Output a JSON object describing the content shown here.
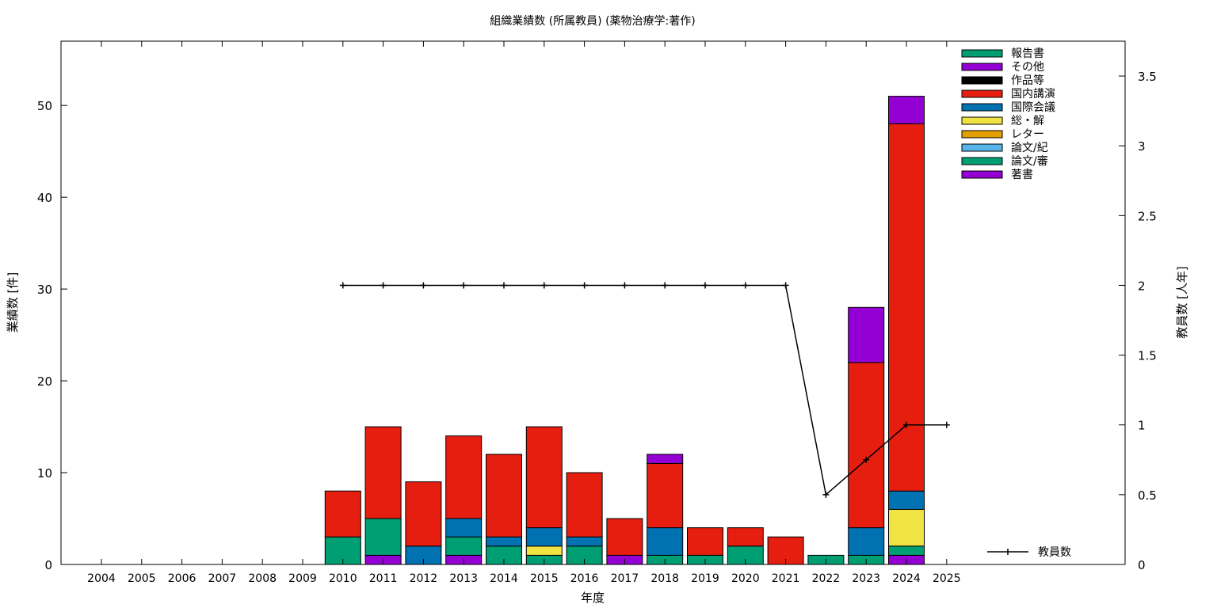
{
  "chart_data": {
    "type": "bar",
    "stacked": true,
    "title": "組織業績数 (所属教員) (薬物治療学:著作)",
    "xlabel": "年度",
    "ylabel": "業績数 [件]",
    "y2label": "教員数 [人年]",
    "categories": [
      "2004",
      "2005",
      "2006",
      "2007",
      "2008",
      "2009",
      "2010",
      "2011",
      "2012",
      "2013",
      "2014",
      "2015",
      "2016",
      "2017",
      "2018",
      "2019",
      "2020",
      "2021",
      "2022",
      "2023",
      "2024",
      "2025"
    ],
    "ylim": [
      0,
      57
    ],
    "yticks": [
      0,
      10,
      20,
      30,
      40,
      50
    ],
    "y2lim": [
      0,
      3.75
    ],
    "y2ticks": [
      "0",
      "0.5",
      "1",
      "1.5",
      "2",
      "2.5",
      "3",
      "3.5"
    ],
    "grid": false,
    "legend_position": "top-right",
    "series": [
      {
        "name": "著書",
        "color": "#9400d3",
        "values": [
          0,
          0,
          0,
          0,
          0,
          0,
          0,
          1,
          0,
          1,
          0,
          0,
          0,
          1,
          0,
          0,
          0,
          0,
          0,
          0,
          1,
          0
        ]
      },
      {
        "name": "論文/審",
        "color": "#009e73",
        "values": [
          0,
          0,
          0,
          0,
          0,
          0,
          3,
          4,
          0,
          2,
          2,
          1,
          2,
          0,
          1,
          1,
          2,
          0,
          1,
          1,
          1,
          0
        ]
      },
      {
        "name": "論文/紀",
        "color": "#56b4e9",
        "values": [
          0,
          0,
          0,
          0,
          0,
          0,
          0,
          0,
          0,
          0,
          0,
          0,
          0,
          0,
          0,
          0,
          0,
          0,
          0,
          0,
          0,
          0
        ]
      },
      {
        "name": "レター",
        "color": "#e69f00",
        "values": [
          0,
          0,
          0,
          0,
          0,
          0,
          0,
          0,
          0,
          0,
          0,
          0,
          0,
          0,
          0,
          0,
          0,
          0,
          0,
          0,
          0,
          0
        ]
      },
      {
        "name": "総・解",
        "color": "#f0e442",
        "values": [
          0,
          0,
          0,
          0,
          0,
          0,
          0,
          0,
          0,
          0,
          0,
          1,
          0,
          0,
          0,
          0,
          0,
          0,
          0,
          0,
          4,
          0
        ]
      },
      {
        "name": "国際会議",
        "color": "#0072b2",
        "values": [
          0,
          0,
          0,
          0,
          0,
          0,
          0,
          0,
          2,
          2,
          1,
          2,
          1,
          0,
          3,
          0,
          0,
          0,
          0,
          3,
          2,
          0
        ]
      },
      {
        "name": "国内講演",
        "color": "#e51e10",
        "values": [
          0,
          0,
          0,
          0,
          0,
          0,
          5,
          10,
          7,
          9,
          9,
          11,
          7,
          4,
          7,
          3,
          2,
          3,
          0,
          18,
          40,
          0
        ]
      },
      {
        "name": "作品等",
        "color": "#000000",
        "values": [
          0,
          0,
          0,
          0,
          0,
          0,
          0,
          0,
          0,
          0,
          0,
          0,
          0,
          0,
          0,
          0,
          0,
          0,
          0,
          0,
          0,
          0
        ]
      },
      {
        "name": "その他",
        "color": "#9400d3",
        "values": [
          0,
          0,
          0,
          0,
          0,
          0,
          0,
          0,
          0,
          0,
          0,
          0,
          0,
          0,
          1,
          0,
          0,
          0,
          0,
          6,
          3,
          0
        ]
      },
      {
        "name": "報告書",
        "color": "#009e73",
        "values": [
          0,
          0,
          0,
          0,
          0,
          0,
          0,
          0,
          0,
          0,
          0,
          0,
          0,
          0,
          0,
          0,
          0,
          0,
          0,
          0,
          0,
          0
        ]
      }
    ],
    "line_series": {
      "name": "教員数",
      "axis": "y2",
      "color": "#000000",
      "points": [
        {
          "x": "2010",
          "y": 2
        },
        {
          "x": "2011",
          "y": 2
        },
        {
          "x": "2012",
          "y": 2
        },
        {
          "x": "2013",
          "y": 2
        },
        {
          "x": "2014",
          "y": 2
        },
        {
          "x": "2015",
          "y": 2
        },
        {
          "x": "2016",
          "y": 2
        },
        {
          "x": "2017",
          "y": 2
        },
        {
          "x": "2018",
          "y": 2
        },
        {
          "x": "2019",
          "y": 2
        },
        {
          "x": "2020",
          "y": 2
        },
        {
          "x": "2021",
          "y": 2
        },
        {
          "x": "2022",
          "y": 0.5
        },
        {
          "x": "2023",
          "y": 0.75
        },
        {
          "x": "2024",
          "y": 1
        },
        {
          "x": "2025",
          "y": 1
        }
      ]
    },
    "legend_order": [
      "報告書",
      "その他",
      "作品等",
      "国内講演",
      "国際会議",
      "総・解",
      "レター",
      "論文/紀",
      "論文/審",
      "著書"
    ]
  }
}
